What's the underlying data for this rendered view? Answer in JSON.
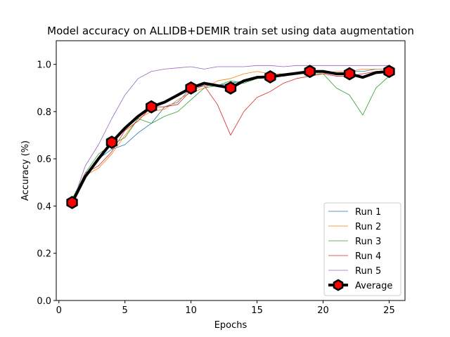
{
  "chart_data": {
    "type": "line",
    "title": "Model accuracy on ALLIDB+DEMIR train set using data augmentation",
    "xlabel": "Epochs",
    "ylabel": "Accuracy (%)",
    "xlim": [
      -0.2,
      26.2
    ],
    "ylim": [
      0.0,
      1.1
    ],
    "xticks": [
      0,
      5,
      10,
      15,
      20,
      25
    ],
    "yticks": [
      0.0,
      0.2,
      0.4,
      0.6,
      0.8,
      1.0
    ],
    "xtick_labels": [
      "0",
      "5",
      "10",
      "15",
      "20",
      "25"
    ],
    "ytick_labels": [
      "0.0",
      "0.2",
      "0.4",
      "0.6",
      "0.8",
      "1.0"
    ],
    "grid": false,
    "legend_position": "lower-right",
    "x": [
      1,
      2,
      3,
      4,
      5,
      6,
      7,
      8,
      9,
      10,
      11,
      12,
      13,
      14,
      15,
      16,
      17,
      18,
      19,
      20,
      21,
      22,
      23,
      24,
      25
    ],
    "series": [
      {
        "name": "Run 1",
        "color": "#1f77b4",
        "values": [
          0.41,
          0.53,
          0.6,
          0.64,
          0.66,
          0.71,
          0.75,
          0.82,
          0.84,
          0.9,
          0.91,
          0.91,
          0.92,
          0.93,
          0.94,
          0.95,
          0.95,
          0.96,
          0.97,
          0.97,
          0.96,
          0.97,
          0.97,
          0.98,
          0.98
        ]
      },
      {
        "name": "Run 2",
        "color": "#ff7f0e",
        "values": [
          0.42,
          0.53,
          0.56,
          0.62,
          0.7,
          0.77,
          0.8,
          0.81,
          0.85,
          0.88,
          0.9,
          0.93,
          0.94,
          0.96,
          0.97,
          0.96,
          0.96,
          0.96,
          0.96,
          0.96,
          0.97,
          0.97,
          0.98,
          0.98,
          0.98
        ]
      },
      {
        "name": "Run 3",
        "color": "#2ca02c",
        "values": [
          0.43,
          0.54,
          0.62,
          0.66,
          0.69,
          0.77,
          0.75,
          0.78,
          0.8,
          0.85,
          0.9,
          0.91,
          0.93,
          0.92,
          0.94,
          0.95,
          0.95,
          0.96,
          0.96,
          0.96,
          0.9,
          0.87,
          0.785,
          0.9,
          0.95
        ]
      },
      {
        "name": "Run 4",
        "color": "#d62728",
        "values": [
          0.42,
          0.54,
          0.57,
          0.63,
          0.72,
          0.76,
          0.82,
          0.82,
          0.83,
          0.89,
          0.91,
          0.83,
          0.7,
          0.8,
          0.86,
          0.885,
          0.92,
          0.94,
          0.95,
          0.96,
          0.95,
          0.95,
          0.96,
          0.97,
          0.97
        ]
      },
      {
        "name": "Run 5",
        "color": "#9467bd",
        "values": [
          0.41,
          0.57,
          0.66,
          0.77,
          0.87,
          0.94,
          0.97,
          0.98,
          0.985,
          0.99,
          0.98,
          0.99,
          0.99,
          0.99,
          0.995,
          0.995,
          0.99,
          0.995,
          0.995,
          0.995,
          0.995,
          0.995,
          0.995,
          0.995,
          0.995
        ]
      },
      {
        "name": "Average",
        "color": "#000000",
        "marker_color": "#ff0000",
        "values": [
          0.415,
          0.525,
          0.6,
          0.67,
          0.73,
          0.78,
          0.82,
          0.84,
          0.87,
          0.9,
          0.92,
          0.91,
          0.9,
          0.93,
          0.945,
          0.947,
          0.955,
          0.962,
          0.97,
          0.97,
          0.96,
          0.96,
          0.945,
          0.965,
          0.97
        ],
        "marker_x": [
          1,
          4,
          7,
          10,
          13,
          16,
          19,
          22,
          25
        ]
      }
    ]
  }
}
